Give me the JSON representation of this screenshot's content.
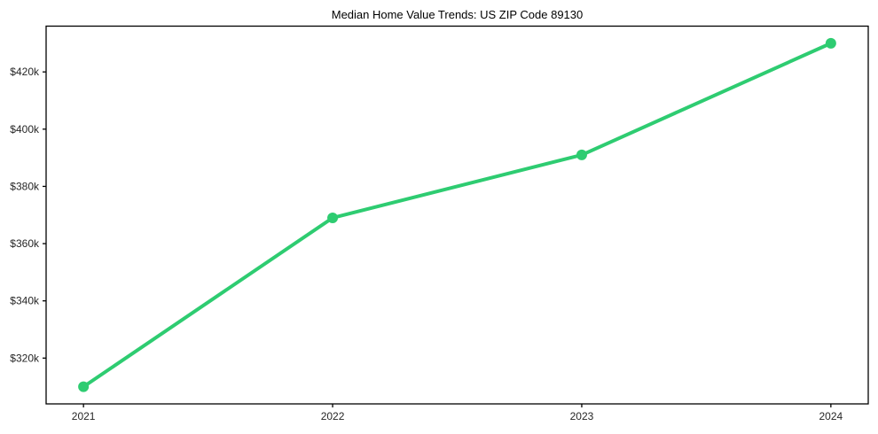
{
  "figure": {
    "background": "#ffffff"
  },
  "chart_data": {
    "type": "line",
    "title": "Median Home Value Trends: US ZIP Code 89130",
    "x": [
      2021,
      2022,
      2023,
      2024
    ],
    "x_tick_labels": [
      "2021",
      "2022",
      "2023",
      "2024"
    ],
    "values": [
      310000,
      369000,
      391000,
      430000
    ],
    "y_ticks": [
      320000,
      340000,
      360000,
      380000,
      400000,
      420000
    ],
    "y_tick_labels": [
      "$320k",
      "$340k",
      "$360k",
      "$380k",
      "$400k",
      "$420k"
    ],
    "xlim": [
      2020.85,
      2024.15
    ],
    "ylim": [
      304000,
      436000
    ],
    "xlabel": "",
    "ylabel": "",
    "grid": false,
    "legend": "none",
    "marker": "circle"
  },
  "style": {
    "line_color": "#2ecc71",
    "marker_color": "#2ecc71",
    "axis_color": "#000000",
    "tick_label_color": "#262626",
    "title_color": "#000000",
    "line_width": 4,
    "marker_radius": 6,
    "spine_width": 1.3,
    "tick_length": 4
  }
}
